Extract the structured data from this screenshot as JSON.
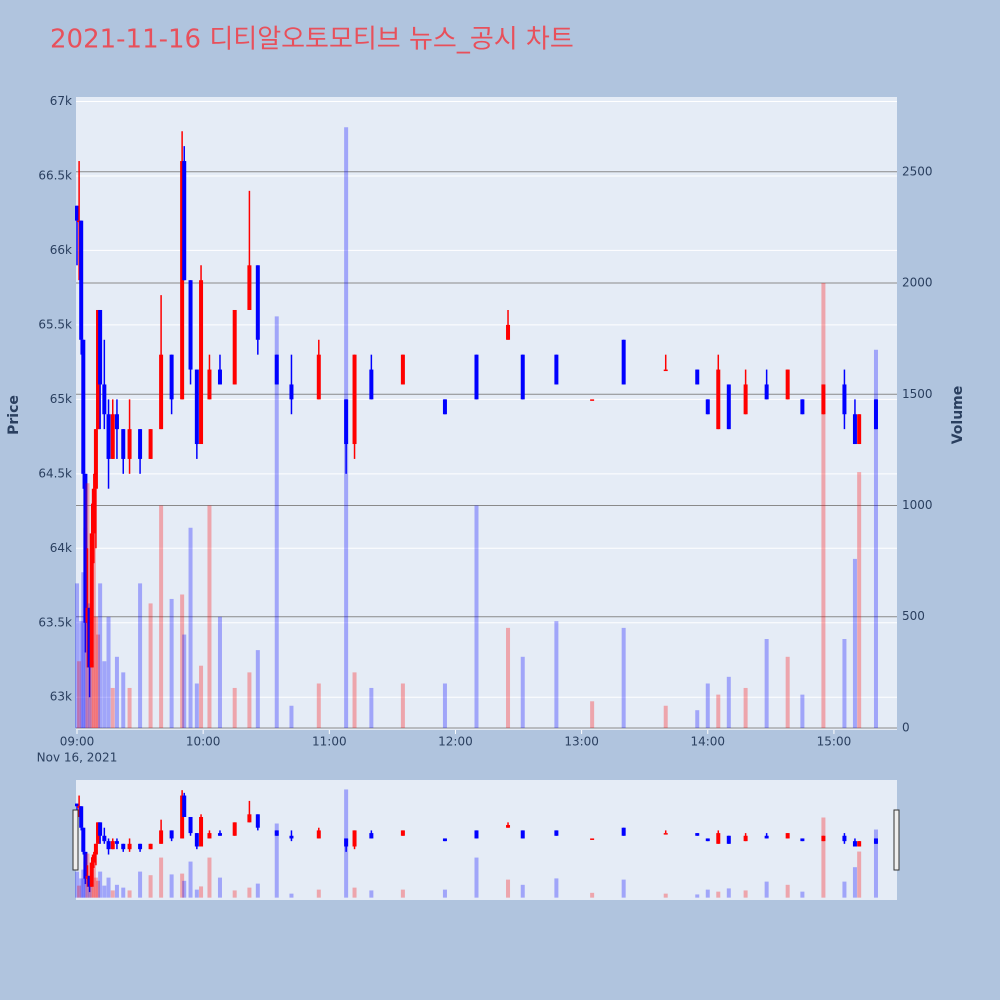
{
  "chart_data": {
    "type": "candlestick",
    "title": "2021-11-16 디티알오토모티브 뉴스_공시 차트",
    "ylabel": "Price",
    "y2label": "Volume",
    "x_date_label": "Nov 16, 2021",
    "increasing_color": "#ff0000",
    "decreasing_color": "#0000ff",
    "grid": true,
    "rangeslider": true,
    "x": [
      "2021-11-16 09:00",
      "2021-11-16 09:01",
      "2021-11-16 09:02",
      "2021-11-16 09:03",
      "2021-11-16 09:04",
      "2021-11-16 09:05",
      "2021-11-16 09:06",
      "2021-11-16 09:07",
      "2021-11-16 09:08",
      "2021-11-16 09:09",
      "2021-11-16 09:10",
      "2021-11-16 09:11",
      "2021-11-16 09:13",
      "2021-11-16 09:15",
      "2021-11-16 09:17",
      "2021-11-16 09:19",
      "2021-11-16 09:22",
      "2021-11-16 09:25",
      "2021-11-16 09:30",
      "2021-11-16 09:35",
      "2021-11-16 09:40",
      "2021-11-16 09:45",
      "2021-11-16 09:50",
      "2021-11-16 09:51",
      "2021-11-16 09:54",
      "2021-11-16 09:57",
      "2021-11-16 09:59",
      "2021-11-16 10:03",
      "2021-11-16 10:08",
      "2021-11-16 10:15",
      "2021-11-16 10:22",
      "2021-11-16 10:26",
      "2021-11-16 10:35",
      "2021-11-16 10:42",
      "2021-11-16 10:55",
      "2021-11-16 11:08",
      "2021-11-16 11:12",
      "2021-11-16 11:20",
      "2021-11-16 11:35",
      "2021-11-16 11:55",
      "2021-11-16 12:10",
      "2021-11-16 12:25",
      "2021-11-16 12:32",
      "2021-11-16 12:48",
      "2021-11-16 13:05",
      "2021-11-16 13:20",
      "2021-11-16 13:40",
      "2021-11-16 13:55",
      "2021-11-16 14:00",
      "2021-11-16 14:05",
      "2021-11-16 14:10",
      "2021-11-16 14:18",
      "2021-11-16 14:28",
      "2021-11-16 14:38",
      "2021-11-16 14:45",
      "2021-11-16 14:55",
      "2021-11-16 15:05",
      "2021-11-16 15:10",
      "2021-11-16 15:12",
      "2021-11-16 15:20"
    ],
    "open": [
      66300,
      66200,
      66200,
      65400,
      64500,
      63500,
      63600,
      63200,
      64100,
      64400,
      64800,
      65600,
      65100,
      64900,
      64600,
      64900,
      64800,
      64600,
      64800,
      64600,
      64800,
      65300,
      65000,
      66600,
      65800,
      65200,
      64700,
      65000,
      65200,
      65100,
      65600,
      65900,
      65300,
      65100,
      65000,
      65000,
      64700,
      65200,
      65100,
      65000,
      65300,
      65400,
      65300,
      65300,
      65000,
      65400,
      65200,
      65200,
      65000,
      64800,
      65100,
      64900,
      65100,
      65000,
      65000,
      64900,
      65100,
      64900,
      64700,
      65000
    ],
    "high": [
      66300,
      66600,
      66200,
      65400,
      64500,
      64000,
      63600,
      64300,
      64500,
      64800,
      65600,
      65600,
      65400,
      65000,
      65000,
      65000,
      64800,
      65000,
      64800,
      64800,
      65700,
      65300,
      66800,
      66700,
      65800,
      65200,
      65900,
      65300,
      65300,
      65600,
      66400,
      65900,
      65300,
      65300,
      65400,
      65000,
      65300,
      65300,
      65300,
      65000,
      65300,
      65600,
      65300,
      65300,
      65000,
      65400,
      65300,
      65200,
      65000,
      65300,
      65100,
      65200,
      65200,
      65200,
      65000,
      65100,
      65200,
      65000,
      64900,
      65000
    ],
    "low": [
      65900,
      65800,
      65300,
      64400,
      63300,
      63200,
      63000,
      63200,
      63900,
      64000,
      64800,
      64800,
      64800,
      64400,
      64600,
      64600,
      64500,
      64500,
      64500,
      64600,
      64800,
      64900,
      65000,
      65800,
      65100,
      64600,
      64700,
      65000,
      65100,
      65100,
      65600,
      65300,
      65100,
      64900,
      65000,
      64500,
      64600,
      65000,
      65100,
      64900,
      65000,
      65400,
      65000,
      65100,
      65000,
      65100,
      65200,
      65100,
      64900,
      64800,
      64800,
      64900,
      65000,
      65000,
      64900,
      64900,
      64800,
      64700,
      64700,
      64800
    ],
    "close": [
      66200,
      66200,
      65400,
      64500,
      63500,
      63600,
      63200,
      64100,
      64400,
      64800,
      65600,
      65100,
      64900,
      64600,
      64900,
      64800,
      64600,
      64800,
      64600,
      64800,
      65300,
      65000,
      66600,
      65800,
      65200,
      64700,
      65800,
      65200,
      65100,
      65600,
      65900,
      65400,
      65100,
      65000,
      65300,
      64700,
      65300,
      65000,
      65300,
      64900,
      65000,
      65500,
      65000,
      65100,
      65000,
      65100,
      65200,
      65100,
      64900,
      65200,
      64800,
      65100,
      65000,
      65200,
      64900,
      65100,
      64900,
      64700,
      64900,
      64800
    ],
    "volume": [
      650,
      300,
      480,
      700,
      900,
      1100,
      560,
      300,
      950,
      500,
      420,
      650,
      300,
      500,
      180,
      320,
      250,
      180,
      650,
      560,
      1000,
      580,
      600,
      420,
      900,
      200,
      280,
      1000,
      500,
      180,
      250,
      350,
      1850,
      100,
      200,
      2700,
      250,
      180,
      200,
      200,
      1000,
      450,
      320,
      480,
      120,
      450,
      100,
      80,
      200,
      150,
      230,
      180,
      400,
      320,
      150,
      2000,
      400,
      760,
      1150,
      1700
    ],
    "xlim": [
      "2021-11-16 09:00",
      "2021-11-16 15:30"
    ],
    "xticks": [
      {
        "value": "2021-11-16 09:00",
        "label": "09:00"
      },
      {
        "value": "2021-11-16 10:00",
        "label": "10:00"
      },
      {
        "value": "2021-11-16 11:00",
        "label": "11:00"
      },
      {
        "value": "2021-11-16 12:00",
        "label": "12:00"
      },
      {
        "value": "2021-11-16 13:00",
        "label": "13:00"
      },
      {
        "value": "2021-11-16 14:00",
        "label": "14:00"
      },
      {
        "value": "2021-11-16 15:00",
        "label": "15:00"
      }
    ],
    "ylim": [
      62780,
      67030
    ],
    "yticks": [
      {
        "value": 63000,
        "label": "63k"
      },
      {
        "value": 63500,
        "label": "63.5k"
      },
      {
        "value": 64000,
        "label": "64k"
      },
      {
        "value": 64500,
        "label": "64.5k"
      },
      {
        "value": 65000,
        "label": "65k"
      },
      {
        "value": 65500,
        "label": "65.5k"
      },
      {
        "value": 66000,
        "label": "66k"
      },
      {
        "value": 66500,
        "label": "66.5k"
      },
      {
        "value": 67000,
        "label": "67k"
      }
    ],
    "y2lim": [
      -9,
      2836
    ],
    "y2ticks": [
      0,
      500,
      1000,
      1500,
      2000,
      2500
    ]
  }
}
